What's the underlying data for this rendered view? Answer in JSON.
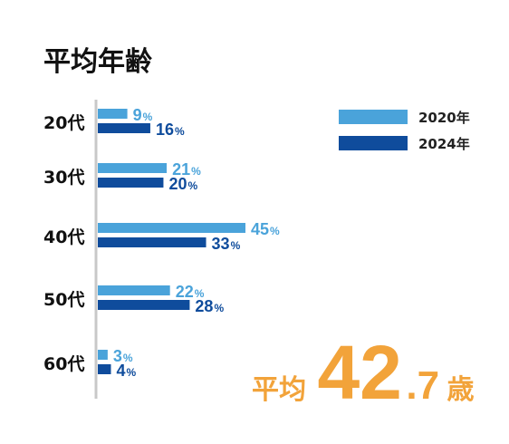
{
  "chart_data": {
    "type": "bar",
    "orientation": "horizontal",
    "title": "平均年齢",
    "categories": [
      "20代",
      "30代",
      "40代",
      "50代",
      "60代"
    ],
    "series": [
      {
        "name": "2020年",
        "values": [
          9,
          21,
          45,
          22,
          3
        ],
        "color": "#4aa3da"
      },
      {
        "name": "2024年",
        "values": [
          16,
          20,
          33,
          28,
          4
        ],
        "color": "#0f4c9c"
      }
    ],
    "value_unit": "%",
    "xlim": [
      0,
      45
    ],
    "grid": false,
    "legend_position": "top-right",
    "data_labels": true
  },
  "average": {
    "prefix": "平均",
    "integer": "42",
    "decimal": ".7",
    "unit": "歳",
    "color": "#f2a33a"
  },
  "axis_color": "#c8c8c8"
}
